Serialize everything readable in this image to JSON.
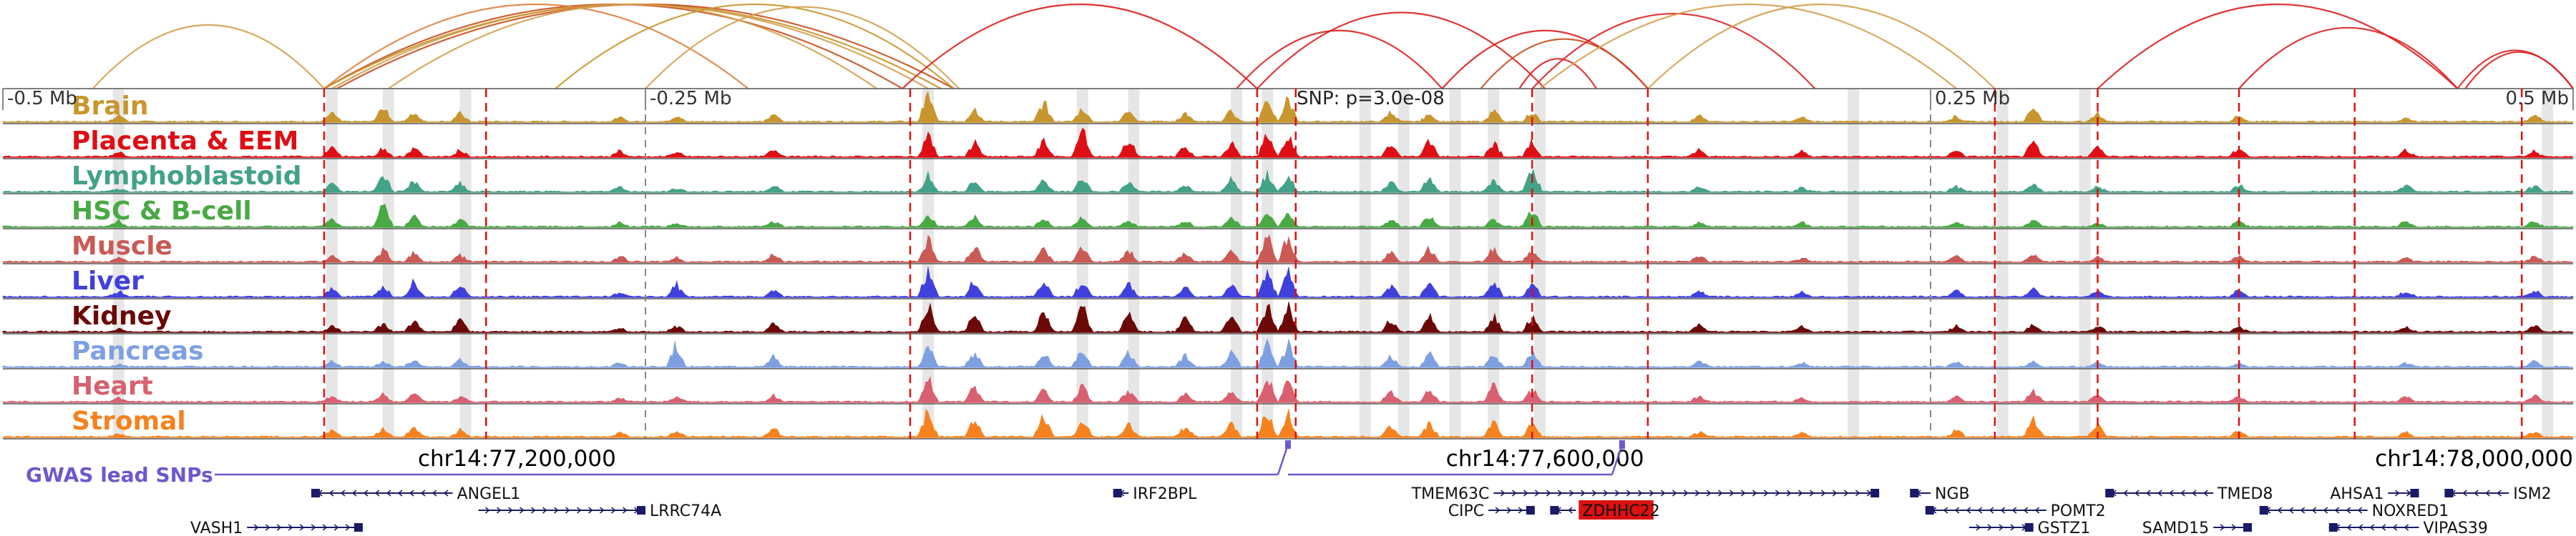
{
  "chart_data": {
    "type": "area",
    "title": "",
    "region": {
      "chrom": "chr14",
      "start": 77000000,
      "end": 78000000
    },
    "relative_ticks": [
      {
        "label": "-0.5 Mb",
        "pos": 77000000
      },
      {
        "label": "-0.25 Mb",
        "pos": 77250000
      },
      {
        "label": "0.25 Mb",
        "pos": 77750000
      },
      {
        "label": "0.5 Mb",
        "pos": 78000000
      }
    ],
    "coordinate_labels": [
      {
        "label": "chr14:77,200,000",
        "pos": 77200000
      },
      {
        "label": "chr14:77,600,000",
        "pos": 77600000
      },
      {
        "label": "chr14:78,000,000",
        "pos": 78000000
      }
    ],
    "snp_annotation": "SNP: p=3.0e-08",
    "lead_snp_pos": 77500000,
    "series": [
      {
        "name": "Brain",
        "color": "#c8962e"
      },
      {
        "name": "Placenta & EEM",
        "color": "#dd0f15"
      },
      {
        "name": "Lymphoblastoid",
        "color": "#43a288"
      },
      {
        "name": "HSC & B-cell",
        "color": "#49a944"
      },
      {
        "name": "Muscle",
        "color": "#c95a55"
      },
      {
        "name": "Liver",
        "color": "#4040dd"
      },
      {
        "name": "Kidney",
        "color": "#6b0808"
      },
      {
        "name": "Pancreas",
        "color": "#7fa0e0"
      },
      {
        "name": "Heart",
        "color": "#d86070"
      },
      {
        "name": "Stromal",
        "color": "#f5821f"
      }
    ],
    "peaks": [
      {
        "pos": 77045000,
        "h": [
          0.25,
          0.15,
          0.1,
          0.2,
          0.15,
          0.2,
          0.12,
          0.08,
          0.15,
          0.12
        ]
      },
      {
        "pos": 77128000,
        "h": [
          0.3,
          0.4,
          0.3,
          0.25,
          0.25,
          0.3,
          0.25,
          0.2,
          0.2,
          0.25
        ]
      },
      {
        "pos": 77148000,
        "h": [
          0.55,
          0.35,
          0.7,
          0.85,
          0.45,
          0.4,
          0.3,
          0.2,
          0.25,
          0.3
        ]
      },
      {
        "pos": 77160000,
        "h": [
          0.35,
          0.3,
          0.4,
          0.45,
          0.35,
          0.55,
          0.4,
          0.25,
          0.3,
          0.35
        ]
      },
      {
        "pos": 77178000,
        "h": [
          0.3,
          0.25,
          0.3,
          0.3,
          0.25,
          0.45,
          0.45,
          0.25,
          0.2,
          0.25
        ]
      },
      {
        "pos": 77240000,
        "h": [
          0.15,
          0.2,
          0.2,
          0.15,
          0.2,
          0.15,
          0.15,
          0.15,
          0.15,
          0.15
        ]
      },
      {
        "pos": 77262000,
        "h": [
          0.2,
          0.15,
          0.12,
          0.12,
          0.15,
          0.45,
          0.2,
          0.85,
          0.2,
          0.2
        ]
      },
      {
        "pos": 77300000,
        "h": [
          0.25,
          0.3,
          0.2,
          0.2,
          0.3,
          0.25,
          0.3,
          0.35,
          0.25,
          0.3
        ]
      },
      {
        "pos": 77360000,
        "h": [
          1.0,
          0.75,
          0.55,
          0.45,
          0.9,
          0.95,
          0.95,
          0.8,
          0.95,
          0.95
        ]
      },
      {
        "pos": 77378000,
        "h": [
          0.5,
          0.5,
          0.4,
          0.35,
          0.55,
          0.6,
          0.65,
          0.5,
          0.55,
          0.6
        ]
      },
      {
        "pos": 77405000,
        "h": [
          0.7,
          0.6,
          0.4,
          0.3,
          0.45,
          0.55,
          0.75,
          0.5,
          0.45,
          0.8
        ]
      },
      {
        "pos": 77420000,
        "h": [
          0.5,
          0.95,
          0.5,
          0.35,
          0.5,
          0.55,
          0.9,
          0.7,
          0.55,
          0.65
        ]
      },
      {
        "pos": 77438000,
        "h": [
          0.4,
          0.6,
          0.35,
          0.25,
          0.4,
          0.45,
          0.7,
          0.55,
          0.4,
          0.45
        ]
      },
      {
        "pos": 77460000,
        "h": [
          0.3,
          0.4,
          0.25,
          0.2,
          0.3,
          0.35,
          0.5,
          0.45,
          0.3,
          0.35
        ]
      },
      {
        "pos": 77478000,
        "h": [
          0.4,
          0.5,
          0.45,
          0.35,
          0.4,
          0.45,
          0.55,
          0.55,
          0.4,
          0.45
        ]
      },
      {
        "pos": 77492000,
        "h": [
          0.9,
          0.85,
          0.7,
          0.55,
          0.95,
          1.0,
          1.0,
          0.85,
          0.95,
          0.95
        ]
      },
      {
        "pos": 77500000,
        "h": [
          0.8,
          0.8,
          0.65,
          0.5,
          0.9,
          0.9,
          0.95,
          0.8,
          0.85,
          0.85
        ]
      },
      {
        "pos": 77540000,
        "h": [
          0.35,
          0.45,
          0.35,
          0.3,
          0.35,
          0.4,
          0.45,
          0.4,
          0.35,
          0.4
        ]
      },
      {
        "pos": 77555000,
        "h": [
          0.3,
          0.6,
          0.55,
          0.4,
          0.45,
          0.5,
          0.55,
          0.45,
          0.45,
          0.5
        ]
      },
      {
        "pos": 77580000,
        "h": [
          0.4,
          0.55,
          0.45,
          0.3,
          0.5,
          0.55,
          0.6,
          0.55,
          0.6,
          0.55
        ]
      },
      {
        "pos": 77595000,
        "h": [
          0.35,
          0.5,
          0.9,
          0.6,
          0.4,
          0.45,
          0.55,
          0.5,
          0.45,
          0.5
        ]
      },
      {
        "pos": 77660000,
        "h": [
          0.2,
          0.25,
          0.2,
          0.15,
          0.2,
          0.2,
          0.25,
          0.2,
          0.2,
          0.2
        ]
      },
      {
        "pos": 77700000,
        "h": [
          0.15,
          0.2,
          0.15,
          0.15,
          0.15,
          0.15,
          0.2,
          0.15,
          0.15,
          0.15
        ]
      },
      {
        "pos": 77760000,
        "h": [
          0.2,
          0.25,
          0.2,
          0.15,
          0.2,
          0.25,
          0.2,
          0.2,
          0.2,
          0.25
        ]
      },
      {
        "pos": 77790000,
        "h": [
          0.55,
          0.55,
          0.3,
          0.2,
          0.25,
          0.3,
          0.25,
          0.2,
          0.4,
          0.75
        ]
      },
      {
        "pos": 77815000,
        "h": [
          0.3,
          0.35,
          0.2,
          0.15,
          0.2,
          0.2,
          0.2,
          0.15,
          0.25,
          0.4
        ]
      },
      {
        "pos": 77870000,
        "h": [
          0.2,
          0.3,
          0.25,
          0.2,
          0.2,
          0.25,
          0.2,
          0.15,
          0.2,
          0.2
        ]
      },
      {
        "pos": 77935000,
        "h": [
          0.15,
          0.25,
          0.25,
          0.2,
          0.15,
          0.2,
          0.15,
          0.15,
          0.2,
          0.15
        ]
      },
      {
        "pos": 77985000,
        "h": [
          0.25,
          0.2,
          0.25,
          0.2,
          0.2,
          0.25,
          0.2,
          0.2,
          0.25,
          0.2
        ]
      }
    ],
    "highlight_regions": [
      77045000,
      77128000,
      77150000,
      77180000,
      77360000,
      77420000,
      77440000,
      77480000,
      77492000,
      77530000,
      77545000,
      77565000,
      77580000,
      77598000,
      77720000,
      77778000,
      77810000,
      77990000
    ],
    "red_dashed_lines": [
      77125000,
      77188000,
      77353000,
      77488000,
      77503000,
      77595000,
      77640000,
      77775000,
      77815000,
      77870000,
      77915000,
      77980000
    ],
    "gray_dashed_lines": [
      77250000,
      77750000
    ],
    "arcs": [
      {
        "a": 77035000,
        "b": 77125000,
        "color": "#d4a050"
      },
      {
        "a": 77125000,
        "b": 77350000,
        "color": "#c85020"
      },
      {
        "a": 77128000,
        "b": 77360000,
        "color": "#d4a050"
      },
      {
        "a": 77125000,
        "b": 77365000,
        "color": "#c8962e"
      },
      {
        "a": 77130000,
        "b": 77370000,
        "color": "#c85020"
      },
      {
        "a": 77125000,
        "b": 77290000,
        "color": "#e08040"
      },
      {
        "a": 77150000,
        "b": 77340000,
        "color": "#d4a050"
      },
      {
        "a": 77215000,
        "b": 77370000,
        "color": "#c8962e"
      },
      {
        "a": 77250000,
        "b": 77372000,
        "color": "#d4a050"
      },
      {
        "a": 77350000,
        "b": 77488000,
        "color": "#dd2020"
      },
      {
        "a": 77480000,
        "b": 77560000,
        "color": "#dd2020"
      },
      {
        "a": 77488000,
        "b": 77600000,
        "color": "#dd2020"
      },
      {
        "a": 77560000,
        "b": 77640000,
        "color": "#dd2020"
      },
      {
        "a": 77575000,
        "b": 77640000,
        "color": "#c85020"
      },
      {
        "a": 77590000,
        "b": 77620000,
        "color": "#dd2020"
      },
      {
        "a": 77595000,
        "b": 77705000,
        "color": "#dd2020"
      },
      {
        "a": 77598000,
        "b": 77760000,
        "color": "#d4a050"
      },
      {
        "a": 77640000,
        "b": 77775000,
        "color": "#d4a050"
      },
      {
        "a": 77815000,
        "b": 77955000,
        "color": "#dd2020"
      },
      {
        "a": 77870000,
        "b": 77955000,
        "color": "#dd2020"
      },
      {
        "a": 77955000,
        "b": 78000000,
        "color": "#dd2020"
      },
      {
        "a": 77958000,
        "b": 78000000,
        "color": "#dd2020"
      }
    ],
    "gwas_label": "GWAS lead SNPs",
    "gwas_snps": [
      77500000,
      77630000
    ],
    "genes": [
      {
        "name": "ANGEL1",
        "start": 77120000,
        "end": 77175000,
        "row": 0,
        "strand": "-"
      },
      {
        "name": "LRRC74A",
        "start": 77185000,
        "end": 77250000,
        "row": 1,
        "strand": "+"
      },
      {
        "name": "VASH1",
        "start": 77095000,
        "end": 77140000,
        "row": 2,
        "strand": "+"
      },
      {
        "name": "IRF2BPL",
        "start": 77432000,
        "end": 77438000,
        "row": 0,
        "strand": "-"
      },
      {
        "name": "TMEM63C",
        "start": 77580000,
        "end": 77730000,
        "row": 0,
        "strand": "+"
      },
      {
        "name": "CIPC",
        "start": 77578000,
        "end": 77596000,
        "row": 1,
        "strand": "+"
      },
      {
        "name": "ZDHHC22",
        "start": 77602000,
        "end": 77612000,
        "row": 1,
        "strand": "-",
        "highlight": true
      },
      {
        "name": "NGB",
        "start": 77742000,
        "end": 77750000,
        "row": 0,
        "strand": "-"
      },
      {
        "name": "TMED8",
        "start": 77818000,
        "end": 77860000,
        "row": 0,
        "strand": "-"
      },
      {
        "name": "POMT2",
        "start": 77748000,
        "end": 77795000,
        "row": 1,
        "strand": "-"
      },
      {
        "name": "GSTZ1",
        "start": 77765000,
        "end": 77790000,
        "row": 2,
        "strand": "+"
      },
      {
        "name": "SAMD15",
        "start": 77860000,
        "end": 77875000,
        "row": 2,
        "strand": "+"
      },
      {
        "name": "NOXRED1",
        "start": 77878000,
        "end": 77920000,
        "row": 1,
        "strand": "-"
      },
      {
        "name": "AHSA1",
        "start": 77928000,
        "end": 77940000,
        "row": 0,
        "strand": "+"
      },
      {
        "name": "ISM2",
        "start": 77950000,
        "end": 77975000,
        "row": 0,
        "strand": "-"
      },
      {
        "name": "VIPAS39",
        "start": 77905000,
        "end": 77940000,
        "row": 2,
        "strand": "-"
      }
    ]
  }
}
